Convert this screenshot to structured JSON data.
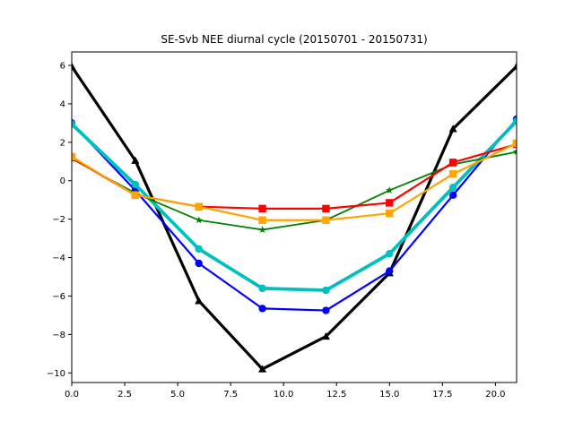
{
  "chart_data": {
    "type": "line",
    "title": "SE-Svb NEE diurnal cycle (20150701 - 20150731)",
    "xlabel": "",
    "ylabel": "",
    "xlim": [
      0,
      21
    ],
    "ylim": [
      -10.5,
      6.7
    ],
    "xticks": [
      "0.0",
      "2.5",
      "5.0",
      "7.5",
      "10.0",
      "12.5",
      "15.0",
      "17.5",
      "20.0"
    ],
    "yticks": [
      "−10",
      "−8",
      "−6",
      "−4",
      "−2",
      "0",
      "2",
      "4",
      "6"
    ],
    "grid": false,
    "x": [
      0,
      3,
      6,
      9,
      12,
      15,
      18,
      21
    ],
    "series": [
      {
        "color": "#000000",
        "marker": "triangle",
        "values": [
          5.95,
          1.05,
          -6.25,
          -9.8,
          -8.1,
          -4.8,
          2.7,
          5.95
        ]
      },
      {
        "color": "#0000ff",
        "marker": "circle",
        "values": [
          3.0,
          -0.5,
          -4.3,
          -6.65,
          -6.75,
          -4.7,
          -0.75,
          3.2
        ]
      },
      {
        "color": "#00bfbf",
        "marker": "circle",
        "values": [
          2.95,
          -0.2,
          -3.55,
          -5.6,
          -5.7,
          -3.8,
          -0.35,
          3.1
        ]
      },
      {
        "color": "#008000",
        "marker": "star",
        "values": [
          1.15,
          -0.65,
          -2.05,
          -2.55,
          -2.05,
          -0.5,
          0.85,
          1.5
        ]
      },
      {
        "color": "#ff0000",
        "marker": "square",
        "values": [
          1.2,
          -0.75,
          -1.35,
          -1.45,
          -1.45,
          -1.15,
          0.95,
          1.9
        ]
      },
      {
        "color": "#ffa500",
        "marker": "square",
        "values": [
          1.25,
          -0.75,
          -1.35,
          -2.05,
          -2.05,
          -1.7,
          0.35,
          1.95
        ]
      }
    ]
  }
}
